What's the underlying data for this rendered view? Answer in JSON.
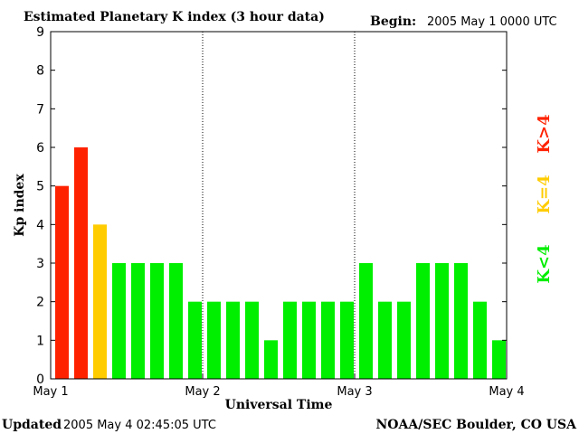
{
  "title": "Estimated Planetary K index (3 hour data)",
  "begin_label": "Begin:",
  "begin_value": "2005 May 1 0000 UTC",
  "footer": {
    "updated_label": "Updated",
    "updated_value": "2005 May  4 02:45:05 UTC",
    "credit": "NOAA/SEC Boulder, CO USA"
  },
  "legend": [
    {
      "label": "K>4",
      "color": "#ff2200"
    },
    {
      "label": "K=4",
      "color": "#ffcc00"
    },
    {
      "label": "K<4",
      "color": "#00ee00"
    }
  ],
  "chart_data": {
    "type": "bar",
    "title": "Estimated Planetary K index (3 hour data)",
    "xlabel": "Universal Time",
    "ylabel": "Kp index",
    "ylim": [
      0,
      9
    ],
    "yticks": [
      "0",
      "1",
      "2",
      "3",
      "4",
      "5",
      "6",
      "7",
      "8",
      "9"
    ],
    "xticks": [
      "May 1",
      "May 2",
      "May 3",
      "May 4"
    ],
    "values": [
      5,
      6,
      4,
      3,
      3,
      3,
      3,
      2,
      2,
      2,
      2,
      1,
      2,
      2,
      2,
      2,
      3,
      2,
      2,
      3,
      3,
      3,
      2,
      1
    ],
    "colors": {
      "above": "#ff2200",
      "equal": "#ffcc00",
      "below": "#00ee00"
    },
    "grid": "dotted day separators",
    "legend_position": "right"
  }
}
